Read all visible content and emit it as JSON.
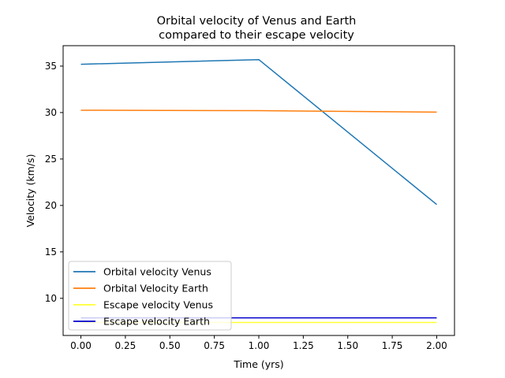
{
  "chart_data": {
    "type": "line",
    "title_lines": [
      "Orbital velocity of Venus and Earth",
      "compared to their escape velocity"
    ],
    "xlabel": "Time (yrs)",
    "ylabel": "Velocity (km/s)",
    "xlim": [
      -0.1,
      2.1
    ],
    "ylim": [
      6.0,
      37.2
    ],
    "xticks": [
      0.0,
      0.25,
      0.5,
      0.75,
      1.0,
      1.25,
      1.5,
      1.75,
      2.0
    ],
    "xtick_labels": [
      "0.00",
      "0.25",
      "0.50",
      "0.75",
      "1.00",
      "1.25",
      "1.50",
      "1.75",
      "2.00"
    ],
    "yticks": [
      10,
      15,
      20,
      25,
      30,
      35
    ],
    "ytick_labels": [
      "10",
      "15",
      "20",
      "25",
      "30",
      "35"
    ],
    "grid": false,
    "legend_position": "lower-left",
    "series": [
      {
        "name": "Orbital velocity Venus",
        "color": "#1f77b4",
        "x": [
          0,
          1,
          2
        ],
        "y": [
          35.2,
          35.7,
          20.1
        ]
      },
      {
        "name": "Orbital Velocity Earth",
        "color": "#ff7f0e",
        "x": [
          0,
          1,
          2
        ],
        "y": [
          30.25,
          30.2,
          30.05
        ]
      },
      {
        "name": "Escape velocity Venus",
        "color": "#ffff33",
        "x": [
          0,
          1,
          2
        ],
        "y": [
          7.4,
          7.4,
          7.4
        ]
      },
      {
        "name": "Escape velocity Earth",
        "color": "#0000cc",
        "x": [
          0,
          1,
          2
        ],
        "y": [
          7.9,
          7.9,
          7.9
        ]
      }
    ]
  }
}
